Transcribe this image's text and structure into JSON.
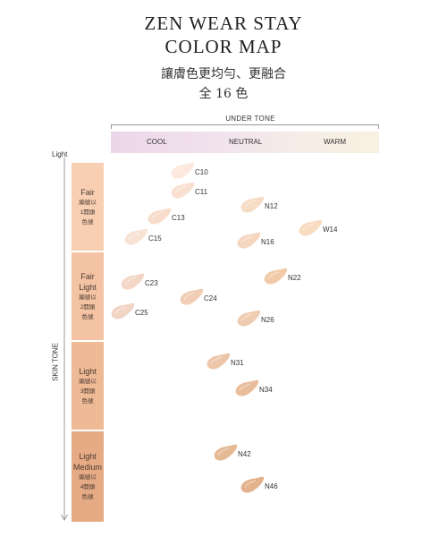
{
  "header": {
    "title_line1": "ZEN WEAR STAY",
    "title_line2": "COLOR MAP",
    "subtitle_line1": "讓膚色更均勻、更融合",
    "subtitle_line2": "全 16 色"
  },
  "undertone_axis": {
    "label": "UNDER TONE",
    "cool": "COOL",
    "neutral": "NEUTRAL",
    "warm": "WARM"
  },
  "skin_tone_axis": {
    "label": "SKIN TONE",
    "light_end": "Light"
  },
  "groups": [
    {
      "name_lines": [
        "Fair"
      ],
      "desc_lines": [
        "編號以",
        "1開頭",
        "色號"
      ]
    },
    {
      "name_lines": [
        "Fair",
        "Light"
      ],
      "desc_lines": [
        "編號以",
        "2開頭",
        "色號"
      ]
    },
    {
      "name_lines": [
        "Light"
      ],
      "desc_lines": [
        "編號以",
        "3開頭",
        "色號"
      ]
    },
    {
      "name_lines": [
        "Light",
        "Medium"
      ],
      "desc_lines": [
        "編號以",
        "4開頭",
        "色號"
      ]
    }
  ],
  "shades": [
    {
      "code": "C10",
      "undertone": "cool",
      "color": "#fce8dc"
    },
    {
      "code": "C11",
      "undertone": "cool",
      "color": "#f9e0d0"
    },
    {
      "code": "C13",
      "undertone": "cool",
      "color": "#f7dccb"
    },
    {
      "code": "C15",
      "undertone": "cool",
      "color": "#f8e2d4"
    },
    {
      "code": "N12",
      "undertone": "neutral",
      "color": "#f7dcc5"
    },
    {
      "code": "N16",
      "undertone": "neutral",
      "color": "#f5d6bf"
    },
    {
      "code": "W14",
      "undertone": "warm",
      "color": "#f8dcc0"
    },
    {
      "code": "C23",
      "undertone": "cool",
      "color": "#f4d6c6"
    },
    {
      "code": "C24",
      "undertone": "cool",
      "color": "#f0cdb4"
    },
    {
      "code": "C25",
      "undertone": "cool",
      "color": "#f2d4c4"
    },
    {
      "code": "N22",
      "undertone": "neutral",
      "color": "#f1cba9"
    },
    {
      "code": "N26",
      "undertone": "neutral",
      "color": "#efcbb0"
    },
    {
      "code": "N31",
      "undertone": "neutral",
      "color": "#edc6aa"
    },
    {
      "code": "N34",
      "undertone": "neutral",
      "color": "#e9bd9b"
    },
    {
      "code": "N42",
      "undertone": "neutral",
      "color": "#e6b995"
    },
    {
      "code": "N46",
      "undertone": "neutral",
      "color": "#e3b28c"
    }
  ]
}
